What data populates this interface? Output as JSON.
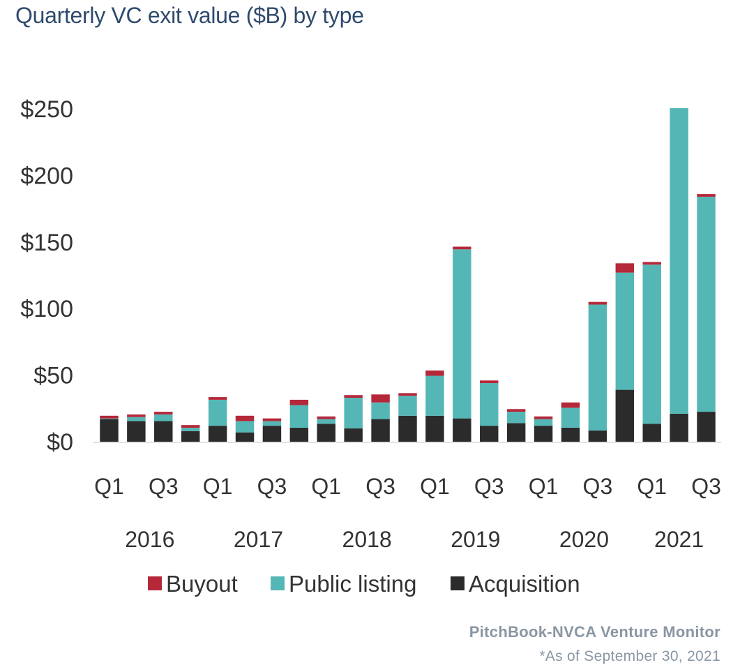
{
  "title": "Quarterly VC exit value ($B) by type",
  "source": "PitchBook-NVCA Venture Monitor",
  "note": "*As of September 30, 2021",
  "chart_data": {
    "type": "bar",
    "stacked": true,
    "title": "Quarterly VC exit value ($B) by type",
    "xlabel": "",
    "ylabel": "",
    "ylim": [
      0,
      250
    ],
    "y_ticks": [
      0,
      50,
      100,
      150,
      200,
      250
    ],
    "y_tick_labels": [
      "$0",
      "$50",
      "$100",
      "$150",
      "$200",
      "$250"
    ],
    "grid": false,
    "legend_position": "bottom",
    "categories": [
      "2016 Q1",
      "2016 Q2",
      "2016 Q3",
      "2016 Q4",
      "2017 Q1",
      "2017 Q2",
      "2017 Q3",
      "2017 Q4",
      "2018 Q1",
      "2018 Q2",
      "2018 Q3",
      "2018 Q4",
      "2019 Q1",
      "2019 Q2",
      "2019 Q3",
      "2019 Q4",
      "2020 Q1",
      "2020 Q2",
      "2020 Q3",
      "2020 Q4",
      "2021 Q1",
      "2021 Q2",
      "2021 Q3"
    ],
    "x_tick_labels": [
      "Q1",
      "",
      "Q3",
      "",
      "Q1",
      "",
      "Q3",
      "",
      "Q1",
      "",
      "Q3",
      "",
      "Q1",
      "",
      "Q3",
      "",
      "Q1",
      "",
      "Q3",
      "",
      "Q1",
      "",
      "Q3"
    ],
    "year_labels": [
      {
        "label": "2016",
        "first_index": 0,
        "last_index": 3
      },
      {
        "label": "2017",
        "first_index": 4,
        "last_index": 7
      },
      {
        "label": "2018",
        "first_index": 8,
        "last_index": 11
      },
      {
        "label": "2019",
        "first_index": 12,
        "last_index": 15
      },
      {
        "label": "2020",
        "first_index": 16,
        "last_index": 19
      },
      {
        "label": "2021",
        "first_index": 20,
        "last_index": 22
      }
    ],
    "series": [
      {
        "name": "Acquisition",
        "color": "#2b2b2b",
        "values": [
          17,
          15.5,
          15.5,
          8,
          12,
          7,
          12,
          10.5,
          13.5,
          10,
          17,
          19.5,
          19.5,
          17.5,
          12,
          14,
          12,
          10.5,
          8.5,
          39,
          13.5,
          21,
          22.5
        ]
      },
      {
        "name": "Public listing",
        "color": "#55b7b5",
        "values": [
          0.5,
          3,
          5,
          2.5,
          19.5,
          8.5,
          3.5,
          17,
          3.5,
          23,
          12.5,
          15,
          30,
          127,
          32,
          8.5,
          5,
          15,
          94.5,
          88,
          119.5,
          229.5,
          161.5
        ]
      },
      {
        "name": "Buyout",
        "color": "#b5283a",
        "values": [
          2,
          2,
          2,
          2,
          2,
          4,
          2,
          4,
          2,
          2,
          6,
          2,
          4,
          2,
          2,
          2,
          2,
          4,
          2,
          7,
          2,
          0,
          2
        ]
      }
    ]
  },
  "legend": [
    {
      "label": "Buyout",
      "color": "#b5283a"
    },
    {
      "label": "Public listing",
      "color": "#55b7b5"
    },
    {
      "label": "Acquisition",
      "color": "#2b2b2b"
    }
  ]
}
